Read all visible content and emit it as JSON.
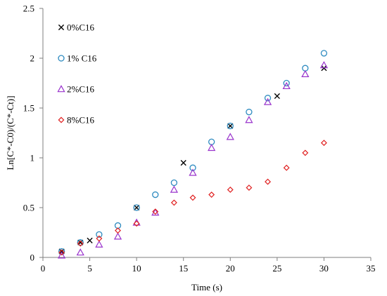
{
  "chart_data": {
    "type": "scatter",
    "xlabel": "Time (s)",
    "ylabel": "Ln[C*-C0)/(C*-Ct)]",
    "xlim": [
      0,
      35
    ],
    "ylim": [
      0,
      2.5
    ],
    "x_ticks": [
      0,
      5,
      10,
      15,
      20,
      25,
      30,
      35
    ],
    "y_ticks": [
      0,
      0.5,
      1,
      1.5,
      2,
      2.5
    ],
    "x_tick_labels": [
      "0",
      "5",
      "10",
      "15",
      "20",
      "25",
      "30",
      "35"
    ],
    "y_tick_labels": [
      "0",
      "0.5",
      "1",
      "1.5",
      "2",
      "2.5"
    ],
    "grid": false,
    "legend_position": "top-left",
    "series": [
      {
        "name": "0%C16",
        "marker": "x",
        "color": "#000000",
        "x": [
          2,
          4,
          5,
          10,
          15,
          20,
          25,
          30
        ],
        "y": [
          0.06,
          0.15,
          0.17,
          0.5,
          0.95,
          1.32,
          1.62,
          1.9
        ]
      },
      {
        "name": "1% C16",
        "marker": "circle",
        "color": "#2e8bc0",
        "x": [
          2,
          4,
          6,
          8,
          10,
          12,
          14,
          16,
          18,
          20,
          22,
          24,
          26,
          28,
          30
        ],
        "y": [
          0.06,
          0.15,
          0.23,
          0.32,
          0.5,
          0.63,
          0.75,
          0.9,
          1.16,
          1.32,
          1.46,
          1.6,
          1.75,
          1.9,
          2.05
        ]
      },
      {
        "name": "2%C16",
        "marker": "triangle",
        "color": "#9933cc",
        "x": [
          2,
          4,
          6,
          8,
          10,
          12,
          14,
          16,
          18,
          20,
          22,
          24,
          26,
          28,
          30
        ],
        "y": [
          0.02,
          0.05,
          0.13,
          0.21,
          0.35,
          0.45,
          0.68,
          0.85,
          1.1,
          1.21,
          1.38,
          1.56,
          1.72,
          1.84,
          1.93
        ]
      },
      {
        "name": "8%C16",
        "marker": "diamond",
        "color": "#e02020",
        "x": [
          2,
          4,
          6,
          8,
          10,
          12,
          14,
          16,
          18,
          20,
          22,
          24,
          26,
          28,
          30
        ],
        "y": [
          0.05,
          0.14,
          0.19,
          0.27,
          0.34,
          0.46,
          0.55,
          0.6,
          0.63,
          0.68,
          0.7,
          0.76,
          0.9,
          1.05,
          1.15
        ]
      }
    ]
  }
}
